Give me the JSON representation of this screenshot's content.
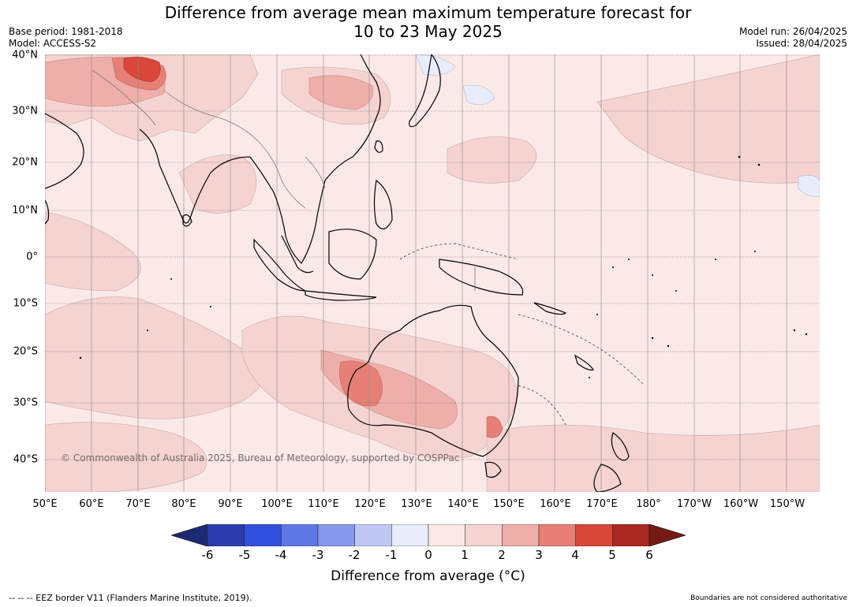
{
  "header": {
    "title_line1": "Difference from average mean maximum temperature forecast for",
    "title_line2": "10 to 23 May 2025",
    "base_period": "Base period: 1981-2018",
    "model": "Model: ACCESS-S2",
    "model_run": "Model run: 26/04/2025",
    "issued": "Issued: 28/04/2025"
  },
  "map": {
    "copyright": "© Commonwealth of Australia 2025, Bureau of Meteorology, supported by COSPPac",
    "lat_labels": [
      "40°N",
      "30°N",
      "20°N",
      "10°N",
      "0°",
      "10°S",
      "20°S",
      "30°S",
      "40°S"
    ],
    "lon_labels": [
      "50°E",
      "60°E",
      "70°E",
      "80°E",
      "90°E",
      "100°E",
      "110°E",
      "120°E",
      "130°E",
      "140°E",
      "150°E",
      "160°E",
      "170°E",
      "180°",
      "170°W",
      "160°W",
      "150°W"
    ],
    "extent": {
      "lon_min": 50,
      "lon_max": 217,
      "lat_min": -45,
      "lat_max": 40
    }
  },
  "colorbar": {
    "ticks": [
      "-6",
      "-5",
      "-4",
      "-3",
      "-2",
      "-1",
      "0",
      "1",
      "2",
      "3",
      "4",
      "5",
      "6"
    ],
    "colors": [
      "#1c2a74",
      "#2a3cae",
      "#3150dd",
      "#5f78e6",
      "#8898ec",
      "#bfc8f3",
      "#e8ecfb",
      "#fbe9e8",
      "#f4d3d1",
      "#eeaeaa",
      "#e68077",
      "#d8473a",
      "#a9281f",
      "#761a15"
    ],
    "label": "Difference from average (°C)"
  },
  "footer": {
    "eez_note": "--  --  -- EEZ border V11 (Flanders Marine Institute, 2019).",
    "boundaries_note": "Boundaries are not considered authoritative"
  }
}
